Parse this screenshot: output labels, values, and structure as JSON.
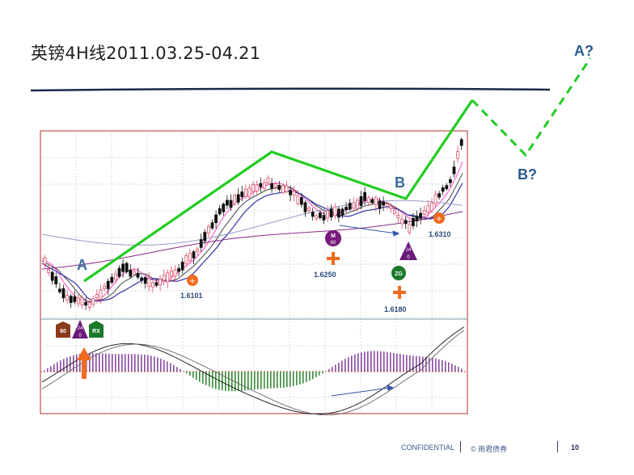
{
  "slide": {
    "title": "英镑4H线2011.03.25-04.21",
    "footer": {
      "confidential": "CONFIDENTIAL",
      "copyright": "© 雨君债券",
      "page": "10"
    }
  },
  "wave_labels": {
    "a": "A",
    "b": "B",
    "b_proj": "B?",
    "a_proj": "A?"
  },
  "price_labels": {
    "p1": "1.6101",
    "p2": "1.6250",
    "p3": "1.6180",
    "p4": "1.6310"
  },
  "markers": {
    "m60_top": "M",
    "m60_bottom": "60",
    "zg": "ZG",
    "d24_top": "24",
    "d24_bottom": "0",
    "p24_top": "24",
    "p24_bottom": "0",
    "hex60": "60",
    "rx": "RX"
  },
  "colors": {
    "wave_line": "#22cc22",
    "up_candle": "#e0506a",
    "down_candle": "#111111",
    "macd_pos": "#8a4aa0",
    "macd_neg": "#3a8a3a",
    "accent_orange": "#ff6a1a",
    "wave_label": "#1f4e8c",
    "arrow_blue": "#3355aa"
  },
  "chart_data": {
    "type": "candlestick",
    "title": "英镑4H线2011.03.25-04.21",
    "annotations": [
      "A",
      "B",
      "B?",
      "A?",
      "1.6101",
      "1.6250",
      "1.6180",
      "1.6310"
    ],
    "wave_path_labels": [
      "A",
      "B",
      "B?",
      "A?"
    ],
    "indicator_panel": "MACD histogram with signal lines",
    "grid": true
  }
}
